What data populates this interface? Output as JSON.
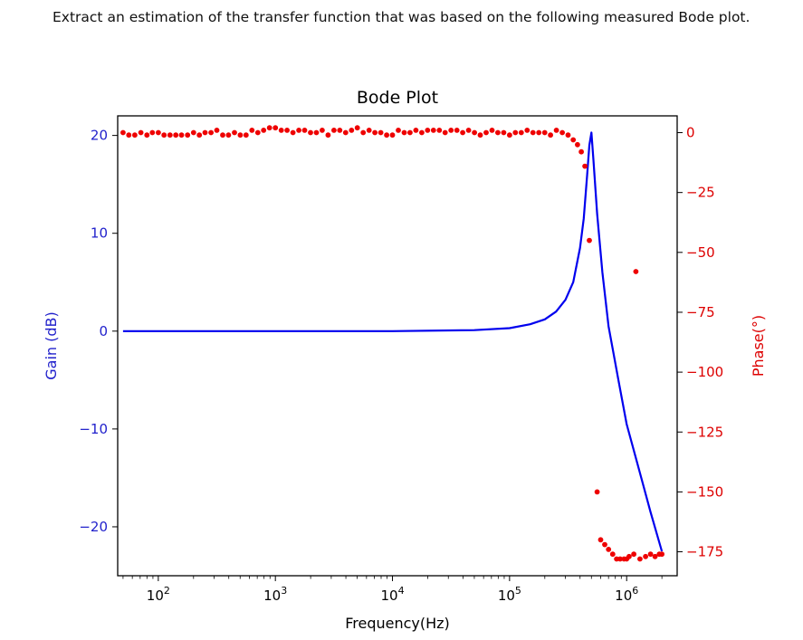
{
  "prompt": "Extract an estimation of the transfer function that was based on the following measured Bode plot.",
  "chart_data": {
    "type": "line",
    "title": "Bode Plot",
    "xlabel": "Frequency(Hz)",
    "ylabel_left": "Gain (dB)",
    "ylabel_right": "Phase(°)",
    "x_scale": "log",
    "xlim": [
      45,
      2700000
    ],
    "x_ticks": [
      {
        "value": 100,
        "base": "10",
        "exp": "2"
      },
      {
        "value": 1000,
        "base": "10",
        "exp": "3"
      },
      {
        "value": 10000,
        "base": "10",
        "exp": "4"
      },
      {
        "value": 100000,
        "base": "10",
        "exp": "5"
      },
      {
        "value": 1000000,
        "base": "10",
        "exp": "6"
      }
    ],
    "ylim_left": [
      -25,
      22
    ],
    "yticks_left": [
      "20",
      "10",
      "0",
      "−10",
      "−20"
    ],
    "ylim_right": [
      -185,
      7
    ],
    "yticks_right": [
      "0",
      "−25",
      "−50",
      "−75",
      "−100",
      "−125",
      "−150",
      "−175"
    ],
    "grid": false,
    "colors": {
      "gain": "#0000ee",
      "phase": "#ee0000",
      "left_axis": "#2222cc",
      "right_axis": "#dd0000"
    },
    "series": [
      {
        "axis": "left",
        "style": "line",
        "x": [
          50,
          100,
          1000,
          10000,
          50000,
          100000,
          150000,
          200000,
          250000,
          300000,
          350000,
          400000,
          430000,
          460000,
          480000,
          500000,
          520000,
          560000,
          620000,
          700000,
          850000,
          1000000,
          1300000,
          1600000,
          2000000
        ],
        "values": [
          0,
          0,
          0,
          0,
          0.1,
          0.3,
          0.7,
          1.2,
          2.0,
          3.2,
          5.0,
          8.5,
          11.5,
          16.0,
          19.0,
          20.3,
          17.5,
          12.0,
          6.0,
          0.5,
          -5.0,
          -9.5,
          -14.5,
          -18.5,
          -22.5
        ]
      },
      {
        "axis": "right",
        "style": "markers",
        "x": [
          50,
          56,
          63,
          71,
          80,
          89,
          100,
          112,
          126,
          141,
          158,
          178,
          200,
          224,
          251,
          282,
          316,
          355,
          398,
          447,
          501,
          562,
          631,
          708,
          794,
          891,
          1000,
          1122,
          1259,
          1413,
          1585,
          1778,
          1995,
          2239,
          2512,
          2818,
          3162,
          3548,
          3981,
          4467,
          5012,
          5623,
          6310,
          7079,
          7943,
          8913,
          10000,
          11220,
          12589,
          14125,
          15849,
          17783,
          19953,
          22387,
          25119,
          28184,
          31623,
          35481,
          39811,
          44668,
          50119,
          56234,
          63096,
          70795,
          79433,
          89125,
          100000,
          112202,
          125893,
          141254,
          158489,
          177828,
          199526,
          223872,
          251189,
          281838,
          316228,
          350000,
          380000,
          410000,
          440000,
          480000,
          560000,
          600000,
          650000,
          700000,
          760000,
          820000,
          880000,
          950000,
          1000000,
          1050000,
          1150000,
          1300000,
          1450000,
          1600000,
          1750000,
          1900000,
          2000000
        ],
        "values": [
          0,
          -1,
          -1,
          0,
          -1,
          0,
          0,
          -1,
          -1,
          -1,
          -1,
          -1,
          0,
          -1,
          0,
          0,
          1,
          -1,
          -1,
          0,
          -1,
          -1,
          1,
          0,
          1,
          2,
          2,
          1,
          1,
          0,
          1,
          1,
          0,
          0,
          1,
          -1,
          1,
          1,
          0,
          1,
          2,
          0,
          1,
          0,
          0,
          -1,
          -1,
          1,
          0,
          0,
          1,
          0,
          1,
          1,
          1,
          0,
          1,
          1,
          0,
          1,
          0,
          -1,
          0,
          1,
          0,
          0,
          -1,
          0,
          0,
          1,
          0,
          0,
          0,
          -1,
          1,
          0,
          -1,
          -3,
          -5,
          -8,
          -14,
          -45,
          -150,
          -170,
          -172,
          -174,
          -176,
          -178,
          -178,
          -178,
          -178,
          -177,
          -176,
          -178,
          -177,
          -176,
          -177,
          -176,
          -176
        ]
      },
      {
        "axis": "right",
        "style": "markers",
        "x": [
          1200000
        ],
        "values": [
          -58
        ]
      }
    ]
  }
}
